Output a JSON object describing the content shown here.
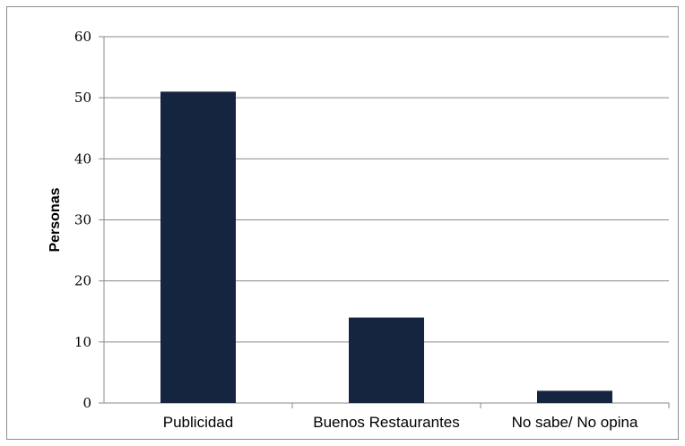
{
  "chart_data": {
    "type": "bar",
    "title": "",
    "xlabel": "",
    "ylabel": "Personas",
    "categories": [
      "Publicidad",
      "Buenos Restaurantes",
      "No sabe/ No opina"
    ],
    "values": [
      51,
      14,
      2
    ],
    "ylim": [
      0,
      60
    ],
    "yticks": [
      0,
      10,
      20,
      30,
      40,
      50,
      60
    ],
    "grid": true,
    "legend": "none",
    "bar_color": "#15243f",
    "grid_color": "#8a8a8a"
  }
}
